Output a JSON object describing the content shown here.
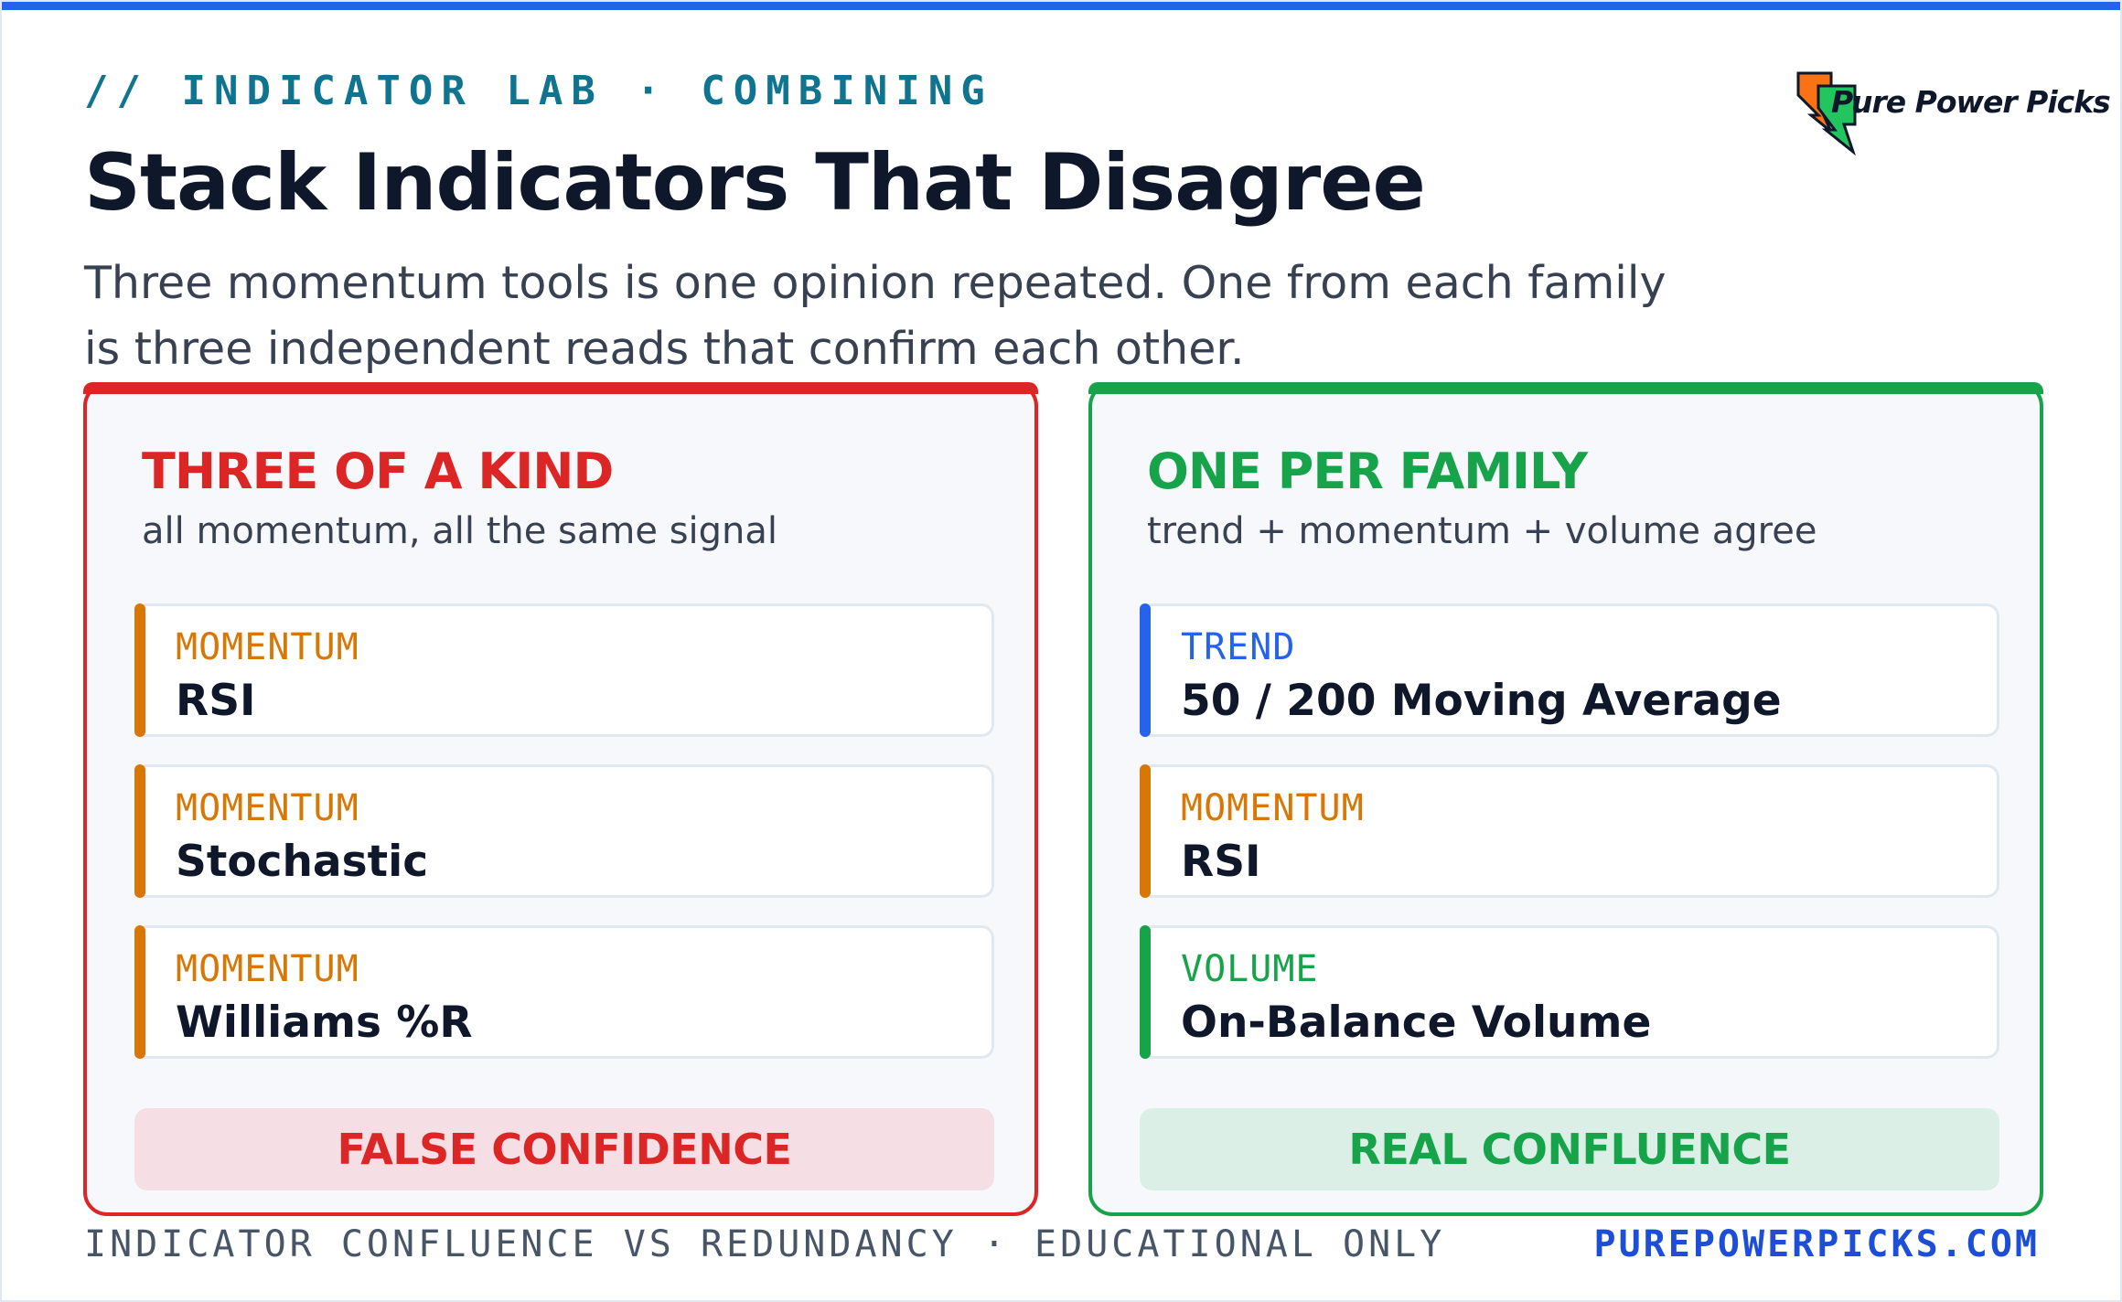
{
  "header": {
    "eyebrow": "// INDICATOR LAB · COMBINING",
    "title": "Stack Indicators That Disagree",
    "subtitle": "Three momentum tools is one opinion repeated. One from each family is three independent reads that confirm each other.",
    "logo_text": "Pure Power Picks"
  },
  "colors": {
    "accent_blue": "#2563eb",
    "bad_red": "#dc2626",
    "good_green": "#16a34a",
    "momentum_orange": "#d97706",
    "trend_blue": "#2563eb",
    "volume_green": "#16a34a"
  },
  "panels": {
    "left": {
      "title": "THREE OF A KIND",
      "subtitle": "all momentum, all the same signal",
      "cards": [
        {
          "family": "MOMENTUM",
          "name": "RSI"
        },
        {
          "family": "MOMENTUM",
          "name": "Stochastic"
        },
        {
          "family": "MOMENTUM",
          "name": "Williams %R"
        }
      ],
      "verdict": "FALSE CONFIDENCE"
    },
    "right": {
      "title": "ONE PER FAMILY",
      "subtitle": "trend + momentum + volume agree",
      "cards": [
        {
          "family": "TREND",
          "name": "50 / 200 Moving Average"
        },
        {
          "family": "MOMENTUM",
          "name": "RSI"
        },
        {
          "family": "VOLUME",
          "name": "On-Balance Volume"
        }
      ],
      "verdict": "REAL CONFLUENCE"
    }
  },
  "footer": {
    "left": "INDICATOR CONFLUENCE VS REDUNDANCY · EDUCATIONAL ONLY",
    "right": "PUREPOWERPICKS.COM"
  }
}
